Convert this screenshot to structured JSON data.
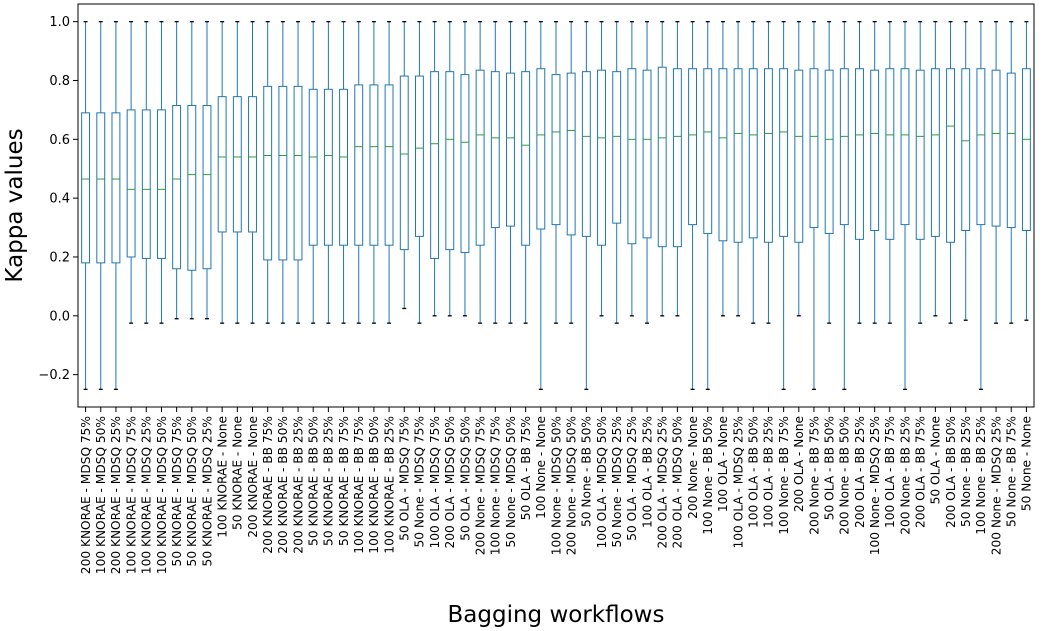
{
  "colors": {
    "box": "#1f77b4",
    "median": "#2ca02c",
    "whisker": "#1f77b4",
    "axis": "#000000"
  },
  "chart_data": {
    "type": "box",
    "xlabel": "Bagging workflows",
    "ylabel": "Kappa values",
    "ylim": [
      -0.31,
      1.06
    ],
    "yticks": [
      -0.2,
      0.0,
      0.2,
      0.4,
      0.6,
      0.8,
      1.0
    ],
    "ytick_labels": [
      "−0.2",
      "0.0",
      "0.2",
      "0.4",
      "0.6",
      "0.8",
      "1.0"
    ],
    "grid": false,
    "categories": [
      "200 KNORAE - MDSQ 75%",
      "100 KNORAE - MDSQ 50%",
      "200 KNORAE - MDSQ 25%",
      "100 KNORAE - MDSQ 75%",
      "100 KNORAE - MDSQ 25%",
      "100 KNORAE - MDSQ 50%",
      "50 KNORAE - MDSQ 75%",
      "50 KNORAE - MDSQ 50%",
      "50 KNORAE - MDSQ 25%",
      "100 KNORAE - None",
      "50 KNORAE - None",
      "200 KNORAE - None",
      "200 KNORAE - BB 75%",
      "200 KNORAE - BB 50%",
      "200 KNORAE - BB 25%",
      "50 KNORAE - BB 50%",
      "50 KNORAE - BB 25%",
      "50 KNORAE - BB 75%",
      "100 KNORAE - BB 75%",
      "100 KNORAE - BB 50%",
      "100 KNORAE - BB 25%",
      "50 OLA - MDSQ 75%",
      "50 None - MDSQ 75%",
      "100 OLA - MDSQ 75%",
      "200 OLA - MDSQ 50%",
      "50 OLA - MDSQ 50%",
      "200 None - MDSQ 75%",
      "100 None - MDSQ 75%",
      "50 None - MDSQ 50%",
      "50 OLA - BB 75%",
      "100 None - None",
      "100 None - MDSQ 50%",
      "200 None - MDSQ 50%",
      "50 None - BB 50%",
      "100 OLA - MDSQ 50%",
      "50 None - MDSQ 25%",
      "50 OLA - MDSQ 25%",
      "100 OLA - BB 25%",
      "200 OLA - MDSQ 25%",
      "200 OLA - MDSQ 50%",
      "200 None - None",
      "100 None - BB 50%",
      "100 OLA - None",
      "100 OLA - MDSQ 25%",
      "100 OLA - BB 50%",
      "100 OLA - BB 25%",
      "100 None - BB 75%",
      "200 OLA - None",
      "200 None - BB 75%",
      "50 OLA - BB 50%",
      "200 None - BB 50%",
      "200 OLA - BB 25%",
      "100 None - MDSQ 25%",
      "100 OLA - BB 75%",
      "200 None - BB 25%",
      "200 OLA - BB 75%",
      "50 OLA - None",
      "200 OLA - BB 50%",
      "50 None - BB 25%",
      "100 None - BB 25%",
      "200 None - MDSQ 25%",
      "50 None - BB 75%",
      "50 None - None"
    ],
    "boxes": [
      {
        "wlow": -0.25,
        "q1": 0.18,
        "med": 0.465,
        "q3": 0.69,
        "whigh": 1.0
      },
      {
        "wlow": -0.25,
        "q1": 0.18,
        "med": 0.465,
        "q3": 0.69,
        "whigh": 1.0
      },
      {
        "wlow": -0.25,
        "q1": 0.18,
        "med": 0.465,
        "q3": 0.69,
        "whigh": 1.0
      },
      {
        "wlow": -0.025,
        "q1": 0.2,
        "med": 0.43,
        "q3": 0.7,
        "whigh": 1.0
      },
      {
        "wlow": -0.025,
        "q1": 0.195,
        "med": 0.43,
        "q3": 0.7,
        "whigh": 1.0
      },
      {
        "wlow": -0.025,
        "q1": 0.195,
        "med": 0.43,
        "q3": 0.7,
        "whigh": 1.0
      },
      {
        "wlow": -0.01,
        "q1": 0.16,
        "med": 0.465,
        "q3": 0.715,
        "whigh": 1.0
      },
      {
        "wlow": -0.01,
        "q1": 0.155,
        "med": 0.48,
        "q3": 0.715,
        "whigh": 1.0
      },
      {
        "wlow": -0.01,
        "q1": 0.16,
        "med": 0.48,
        "q3": 0.715,
        "whigh": 1.0
      },
      {
        "wlow": -0.025,
        "q1": 0.285,
        "med": 0.54,
        "q3": 0.745,
        "whigh": 1.0
      },
      {
        "wlow": -0.025,
        "q1": 0.285,
        "med": 0.54,
        "q3": 0.745,
        "whigh": 1.0
      },
      {
        "wlow": -0.025,
        "q1": 0.285,
        "med": 0.54,
        "q3": 0.745,
        "whigh": 1.0
      },
      {
        "wlow": -0.025,
        "q1": 0.19,
        "med": 0.545,
        "q3": 0.78,
        "whigh": 1.0
      },
      {
        "wlow": -0.025,
        "q1": 0.19,
        "med": 0.545,
        "q3": 0.78,
        "whigh": 1.0
      },
      {
        "wlow": -0.025,
        "q1": 0.19,
        "med": 0.545,
        "q3": 0.78,
        "whigh": 1.0
      },
      {
        "wlow": -0.025,
        "q1": 0.24,
        "med": 0.54,
        "q3": 0.77,
        "whigh": 1.0
      },
      {
        "wlow": -0.025,
        "q1": 0.24,
        "med": 0.545,
        "q3": 0.77,
        "whigh": 1.0
      },
      {
        "wlow": -0.025,
        "q1": 0.24,
        "med": 0.54,
        "q3": 0.77,
        "whigh": 1.0
      },
      {
        "wlow": -0.025,
        "q1": 0.24,
        "med": 0.575,
        "q3": 0.785,
        "whigh": 1.0
      },
      {
        "wlow": -0.025,
        "q1": 0.24,
        "med": 0.575,
        "q3": 0.785,
        "whigh": 1.0
      },
      {
        "wlow": -0.025,
        "q1": 0.24,
        "med": 0.575,
        "q3": 0.785,
        "whigh": 1.0
      },
      {
        "wlow": 0.025,
        "q1": 0.225,
        "med": 0.55,
        "q3": 0.815,
        "whigh": 1.0
      },
      {
        "wlow": -0.025,
        "q1": 0.27,
        "med": 0.57,
        "q3": 0.815,
        "whigh": 1.0
      },
      {
        "wlow": 0.0,
        "q1": 0.195,
        "med": 0.585,
        "q3": 0.83,
        "whigh": 1.0
      },
      {
        "wlow": 0.0,
        "q1": 0.225,
        "med": 0.6,
        "q3": 0.83,
        "whigh": 1.0
      },
      {
        "wlow": 0.0,
        "q1": 0.215,
        "med": 0.59,
        "q3": 0.82,
        "whigh": 1.0
      },
      {
        "wlow": -0.025,
        "q1": 0.24,
        "med": 0.615,
        "q3": 0.835,
        "whigh": 1.0
      },
      {
        "wlow": -0.025,
        "q1": 0.3,
        "med": 0.605,
        "q3": 0.83,
        "whigh": 1.0
      },
      {
        "wlow": -0.025,
        "q1": 0.305,
        "med": 0.605,
        "q3": 0.825,
        "whigh": 1.0
      },
      {
        "wlow": -0.025,
        "q1": 0.24,
        "med": 0.58,
        "q3": 0.83,
        "whigh": 1.0
      },
      {
        "wlow": -0.25,
        "q1": 0.295,
        "med": 0.615,
        "q3": 0.84,
        "whigh": 1.0
      },
      {
        "wlow": -0.025,
        "q1": 0.31,
        "med": 0.625,
        "q3": 0.82,
        "whigh": 1.0
      },
      {
        "wlow": -0.025,
        "q1": 0.275,
        "med": 0.63,
        "q3": 0.825,
        "whigh": 1.0
      },
      {
        "wlow": -0.25,
        "q1": 0.27,
        "med": 0.61,
        "q3": 0.83,
        "whigh": 1.0
      },
      {
        "wlow": 0.0,
        "q1": 0.24,
        "med": 0.605,
        "q3": 0.835,
        "whigh": 1.0
      },
      {
        "wlow": -0.025,
        "q1": 0.315,
        "med": 0.61,
        "q3": 0.83,
        "whigh": 1.0
      },
      {
        "wlow": 0.0,
        "q1": 0.245,
        "med": 0.6,
        "q3": 0.84,
        "whigh": 1.0
      },
      {
        "wlow": -0.025,
        "q1": 0.265,
        "med": 0.6,
        "q3": 0.835,
        "whigh": 1.0
      },
      {
        "wlow": 0.0,
        "q1": 0.235,
        "med": 0.605,
        "q3": 0.845,
        "whigh": 1.0
      },
      {
        "wlow": 0.0,
        "q1": 0.235,
        "med": 0.61,
        "q3": 0.84,
        "whigh": 1.0
      },
      {
        "wlow": -0.25,
        "q1": 0.31,
        "med": 0.615,
        "q3": 0.84,
        "whigh": 1.0
      },
      {
        "wlow": -0.25,
        "q1": 0.28,
        "med": 0.625,
        "q3": 0.84,
        "whigh": 1.0
      },
      {
        "wlow": 0.0,
        "q1": 0.255,
        "med": 0.605,
        "q3": 0.84,
        "whigh": 1.0
      },
      {
        "wlow": 0.0,
        "q1": 0.25,
        "med": 0.62,
        "q3": 0.84,
        "whigh": 1.0
      },
      {
        "wlow": -0.025,
        "q1": 0.265,
        "med": 0.615,
        "q3": 0.84,
        "whigh": 1.0
      },
      {
        "wlow": -0.025,
        "q1": 0.25,
        "med": 0.62,
        "q3": 0.84,
        "whigh": 1.0
      },
      {
        "wlow": -0.25,
        "q1": 0.27,
        "med": 0.625,
        "q3": 0.84,
        "whigh": 1.0
      },
      {
        "wlow": 0.0,
        "q1": 0.25,
        "med": 0.61,
        "q3": 0.835,
        "whigh": 1.0
      },
      {
        "wlow": -0.25,
        "q1": 0.3,
        "med": 0.61,
        "q3": 0.84,
        "whigh": 1.0
      },
      {
        "wlow": -0.025,
        "q1": 0.28,
        "med": 0.6,
        "q3": 0.835,
        "whigh": 1.0
      },
      {
        "wlow": -0.25,
        "q1": 0.31,
        "med": 0.61,
        "q3": 0.84,
        "whigh": 1.0
      },
      {
        "wlow": -0.025,
        "q1": 0.26,
        "med": 0.615,
        "q3": 0.84,
        "whigh": 1.0
      },
      {
        "wlow": -0.025,
        "q1": 0.29,
        "med": 0.62,
        "q3": 0.835,
        "whigh": 1.0
      },
      {
        "wlow": -0.025,
        "q1": 0.26,
        "med": 0.615,
        "q3": 0.84,
        "whigh": 1.0
      },
      {
        "wlow": -0.25,
        "q1": 0.31,
        "med": 0.615,
        "q3": 0.84,
        "whigh": 1.0
      },
      {
        "wlow": -0.025,
        "q1": 0.26,
        "med": 0.61,
        "q3": 0.835,
        "whigh": 1.0
      },
      {
        "wlow": 0.0,
        "q1": 0.27,
        "med": 0.615,
        "q3": 0.84,
        "whigh": 1.0
      },
      {
        "wlow": -0.025,
        "q1": 0.25,
        "med": 0.645,
        "q3": 0.84,
        "whigh": 1.0
      },
      {
        "wlow": -0.015,
        "q1": 0.29,
        "med": 0.595,
        "q3": 0.84,
        "whigh": 1.0
      },
      {
        "wlow": -0.25,
        "q1": 0.31,
        "med": 0.615,
        "q3": 0.84,
        "whigh": 1.0
      },
      {
        "wlow": -0.025,
        "q1": 0.305,
        "med": 0.62,
        "q3": 0.835,
        "whigh": 1.0
      },
      {
        "wlow": -0.025,
        "q1": 0.3,
        "med": 0.62,
        "q3": 0.825,
        "whigh": 1.0
      },
      {
        "wlow": -0.015,
        "q1": 0.29,
        "med": 0.6,
        "q3": 0.84,
        "whigh": 1.0
      }
    ]
  }
}
